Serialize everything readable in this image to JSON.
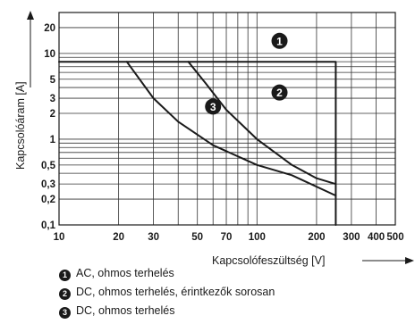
{
  "chart_data": {
    "type": "line",
    "title": "",
    "xlabel": "Kapcsolófeszültség [V]",
    "ylabel": "Kapcsolóáram [A]",
    "xscale": "log",
    "yscale": "log",
    "xlim": [
      10,
      500
    ],
    "ylim": [
      0.1,
      30
    ],
    "x_ticks": [
      10,
      20,
      30,
      50,
      70,
      100,
      200,
      300,
      400,
      500
    ],
    "y_ticks": [
      0.1,
      0.2,
      0.3,
      0.5,
      1,
      2,
      3,
      5,
      10,
      20
    ],
    "x_tick_labels": [
      "10",
      "20",
      "30",
      "50",
      "70",
      "100",
      "200",
      "300",
      "400",
      "500"
    ],
    "y_tick_labels": [
      "0,1",
      "0,2",
      "0,3",
      "0,5",
      "1",
      "2",
      "3",
      "5",
      "10",
      "20"
    ],
    "grid": true,
    "series": [
      {
        "label": "1",
        "name": "AC, ohmos terhelés",
        "x": [
          10,
          250,
          250
        ],
        "y": [
          8,
          8,
          0.1
        ]
      },
      {
        "label": "2",
        "name": "DC, ohmos terhelés, érintkezők sorosan",
        "x": [
          45,
          55,
          70,
          100,
          150,
          200,
          250
        ],
        "y": [
          8,
          4.5,
          2.2,
          1.0,
          0.5,
          0.35,
          0.3
        ]
      },
      {
        "label": "3",
        "name": "DC, ohmos terhelés",
        "x": [
          22,
          30,
          40,
          60,
          100,
          150,
          250
        ],
        "y": [
          8,
          3.0,
          1.6,
          0.85,
          0.5,
          0.38,
          0.22
        ]
      }
    ]
  }
}
